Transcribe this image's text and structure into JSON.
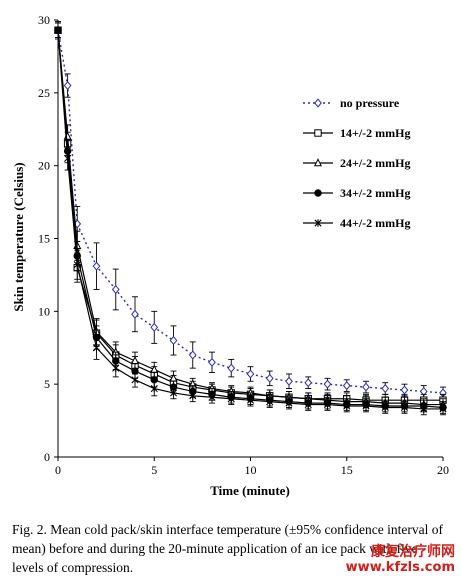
{
  "chart_data": {
    "type": "line",
    "xlabel": "Time (minute)",
    "ylabel": "Skin temperature (Celsius)",
    "xlim": [
      0,
      20
    ],
    "ylim": [
      0,
      30
    ],
    "xticks": [
      0,
      5,
      10,
      15,
      20
    ],
    "yticks": [
      0,
      5,
      10,
      15,
      20,
      25,
      30
    ],
    "grid": false,
    "legend_position": "right",
    "x": [
      0,
      0.5,
      1,
      2,
      3,
      4,
      5,
      6,
      7,
      8,
      9,
      10,
      11,
      12,
      13,
      14,
      15,
      16,
      17,
      18,
      19,
      20
    ],
    "series": [
      {
        "name": "no pressure",
        "style": "dotted",
        "marker": "diamond",
        "color": "#2b2bb8",
        "values": [
          29.3,
          25.5,
          16.0,
          13.1,
          11.5,
          9.8,
          8.9,
          8.0,
          7.0,
          6.5,
          6.1,
          5.7,
          5.4,
          5.2,
          5.1,
          5.0,
          4.9,
          4.8,
          4.7,
          4.6,
          4.5,
          4.4
        ],
        "error": [
          0.6,
          0.8,
          1.2,
          1.6,
          1.4,
          1.2,
          1.1,
          1.0,
          0.9,
          0.7,
          0.6,
          0.5,
          0.5,
          0.5,
          0.4,
          0.4,
          0.4,
          0.4,
          0.4,
          0.4,
          0.4,
          0.4
        ]
      },
      {
        "name": "14+/-2 mmHg",
        "style": "solid",
        "marker": "square",
        "color": "#000000",
        "values": [
          29.3,
          21.5,
          13.0,
          8.5,
          7.0,
          6.3,
          5.7,
          5.1,
          4.8,
          4.6,
          4.4,
          4.3,
          4.2,
          4.1,
          4.0,
          4.0,
          4.0,
          3.9,
          3.9,
          3.9,
          3.9,
          3.9
        ],
        "error": [
          0.5,
          0.8,
          1.0,
          0.9,
          0.7,
          0.6,
          0.5,
          0.5,
          0.4,
          0.4,
          0.4,
          0.4,
          0.4,
          0.4,
          0.4,
          0.4,
          0.4,
          0.4,
          0.4,
          0.4,
          0.4,
          0.4
        ]
      },
      {
        "name": "24+/-2 mmHg",
        "style": "solid",
        "marker": "triangle",
        "color": "#000000",
        "values": [
          29.3,
          22.0,
          14.5,
          8.6,
          7.2,
          6.6,
          6.0,
          5.4,
          5.0,
          4.7,
          4.5,
          4.4,
          4.2,
          4.1,
          4.0,
          3.9,
          3.8,
          3.8,
          3.7,
          3.7,
          3.6,
          3.6
        ],
        "error": [
          0.5,
          0.8,
          1.0,
          0.9,
          0.7,
          0.6,
          0.5,
          0.5,
          0.4,
          0.4,
          0.4,
          0.4,
          0.4,
          0.4,
          0.4,
          0.4,
          0.4,
          0.4,
          0.4,
          0.4,
          0.4,
          0.4
        ]
      },
      {
        "name": "34+/-2 mmHg",
        "style": "solid",
        "marker": "circle",
        "color": "#000000",
        "values": [
          29.3,
          21.0,
          13.8,
          8.2,
          6.6,
          5.9,
          5.3,
          4.8,
          4.5,
          4.3,
          4.1,
          4.0,
          3.9,
          3.8,
          3.7,
          3.7,
          3.6,
          3.6,
          3.5,
          3.5,
          3.5,
          3.4
        ],
        "error": [
          0.5,
          0.8,
          1.0,
          0.8,
          0.6,
          0.5,
          0.5,
          0.4,
          0.4,
          0.4,
          0.4,
          0.4,
          0.4,
          0.4,
          0.4,
          0.4,
          0.4,
          0.4,
          0.4,
          0.4,
          0.4,
          0.4
        ]
      },
      {
        "name": "44+/-2 mmHg",
        "style": "solid",
        "marker": "asterisk",
        "color": "#000000",
        "values": [
          29.3,
          20.5,
          13.2,
          7.5,
          6.1,
          5.3,
          4.7,
          4.4,
          4.2,
          4.1,
          4.0,
          3.9,
          3.8,
          3.7,
          3.6,
          3.6,
          3.5,
          3.5,
          3.4,
          3.4,
          3.3,
          3.3
        ],
        "error": [
          0.5,
          0.8,
          1.0,
          0.8,
          0.6,
          0.5,
          0.5,
          0.4,
          0.4,
          0.4,
          0.4,
          0.4,
          0.4,
          0.4,
          0.4,
          0.4,
          0.4,
          0.4,
          0.4,
          0.4,
          0.4,
          0.4
        ]
      }
    ]
  },
  "caption": "Fig. 2.  Mean cold pack/skin interface temperature (±95% confidence interval of mean) before and during the 20-minute application of an ice pack with five levels of compression.",
  "watermark": {
    "line1": "康复治疗师网",
    "line2": "www.kfzls.com"
  }
}
